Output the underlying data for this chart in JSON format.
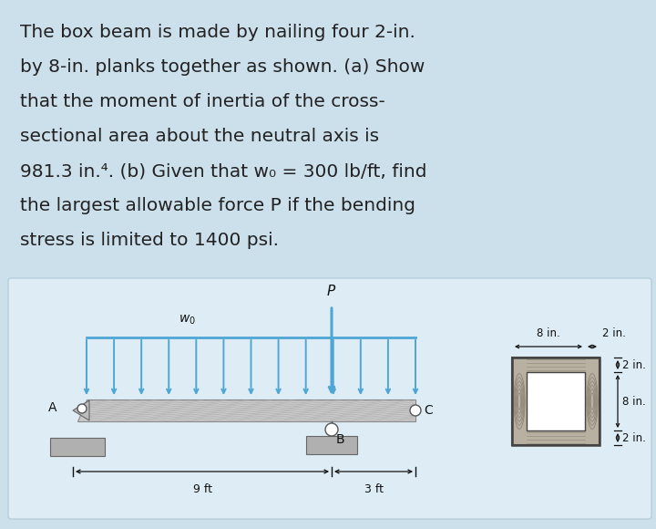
{
  "bg_color": "#cce0ec",
  "panel_bg": "#deedf5",
  "text_color": "#222222",
  "title_lines": [
    "The box beam is made by nailing four 2-in.",
    "by 8-in. planks together as shown. (a) Show",
    "that the moment of inertia of the cross-",
    "sectional area about the neutral axis is",
    "981.3 in.⁴. (b) Given that w₀ = 300 lb/ft, find",
    "the largest allowable force P if the bending",
    "stress is limited to 1400 psi."
  ],
  "beam_face_color": "#c8c8c8",
  "beam_edge_color": "#888888",
  "grain_color": "#aaaaaa",
  "arrow_color": "#4da6d4",
  "support_color": "#aaaaaa",
  "support_edge": "#666666",
  "pin_color": "#cccccc",
  "dim_color": "#111111",
  "wood_fill": "#b8b0a0",
  "wood_edge": "#444444",
  "inner_fill": "#ffffff",
  "ring_color": "#888070"
}
